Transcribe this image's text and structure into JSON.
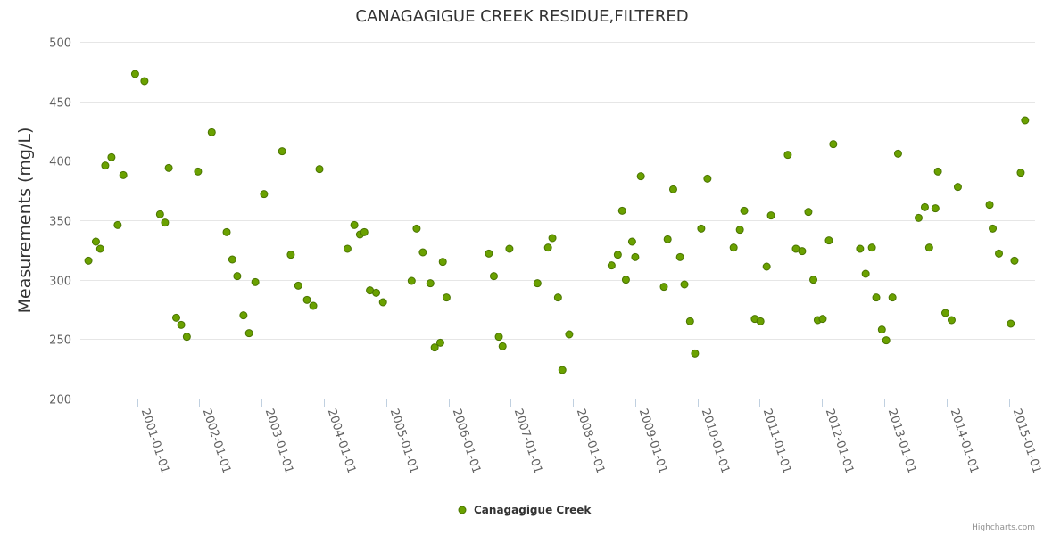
{
  "chart_data": {
    "type": "scatter",
    "title": "CANAGAGIGUE CREEK RESIDUE,FILTERED",
    "xlabel": "",
    "ylabel": "Measurements (mg/L)",
    "xlim": [
      2000.09,
      2015.42
    ],
    "ylim": [
      200,
      500
    ],
    "yticks": [
      200,
      250,
      300,
      350,
      400,
      450,
      500
    ],
    "xticks": [
      {
        "value": 2001,
        "label": "2001-01-01"
      },
      {
        "value": 2002,
        "label": "2002-01-01"
      },
      {
        "value": 2003,
        "label": "2003-01-01"
      },
      {
        "value": 2004,
        "label": "2004-01-01"
      },
      {
        "value": 2005,
        "label": "2005-01-01"
      },
      {
        "value": 2006,
        "label": "2006-01-01"
      },
      {
        "value": 2007,
        "label": "2007-01-01"
      },
      {
        "value": 2008,
        "label": "2008-01-01"
      },
      {
        "value": 2009,
        "label": "2009-01-01"
      },
      {
        "value": 2010,
        "label": "2010-01-01"
      },
      {
        "value": 2011,
        "label": "2011-01-01"
      },
      {
        "value": 2012,
        "label": "2012-01-01"
      },
      {
        "value": 2013,
        "label": "2013-01-01"
      },
      {
        "value": 2014,
        "label": "2014-01-01"
      },
      {
        "value": 2015,
        "label": "2015-01-01"
      }
    ],
    "grid": true,
    "legend_position": "bottom-center",
    "series": [
      {
        "name": "Canagagigue Creek",
        "color": "#6aa100",
        "border_color": "#4a7500",
        "x": [
          2000.22,
          2000.34,
          2000.41,
          2000.49,
          2000.59,
          2000.69,
          2000.78,
          2000.97,
          2001.12,
          2001.37,
          2001.45,
          2001.51,
          2001.63,
          2001.71,
          2001.8,
          2001.98,
          2002.2,
          2002.44,
          2002.53,
          2002.61,
          2002.71,
          2002.8,
          2002.9,
          2003.04,
          2003.33,
          2003.47,
          2003.59,
          2003.73,
          2003.83,
          2003.93,
          2004.38,
          2004.49,
          2004.58,
          2004.65,
          2004.74,
          2004.84,
          2004.95,
          2005.41,
          2005.49,
          2005.59,
          2005.71,
          2005.78,
          2005.87,
          2005.91,
          2005.97,
          2006.65,
          2006.73,
          2006.81,
          2006.87,
          2006.98,
          2007.43,
          2007.6,
          2007.67,
          2007.76,
          2007.83,
          2007.94,
          2008.62,
          2008.72,
          2008.79,
          2008.85,
          2008.95,
          2009.0,
          2009.09,
          2009.46,
          2009.52,
          2009.61,
          2009.72,
          2009.79,
          2009.88,
          2009.96,
          2010.06,
          2010.16,
          2010.58,
          2010.68,
          2010.75,
          2010.92,
          2011.01,
          2011.11,
          2011.18,
          2011.45,
          2011.58,
          2011.68,
          2011.78,
          2011.86,
          2011.93,
          2012.01,
          2012.11,
          2012.18,
          2012.61,
          2012.7,
          2012.8,
          2012.87,
          2012.96,
          2013.03,
          2013.13,
          2013.22,
          2013.55,
          2013.65,
          2013.72,
          2013.82,
          2013.86,
          2013.98,
          2014.08,
          2014.18,
          2014.69,
          2014.74,
          2014.84,
          2015.03,
          2015.09,
          2015.19,
          2015.26
        ],
        "y": [
          316,
          332,
          326,
          396,
          403,
          346,
          388,
          473,
          467,
          355,
          348,
          394,
          268,
          262,
          252,
          391,
          424,
          340,
          317,
          303,
          270,
          255,
          298,
          372,
          408,
          321,
          295,
          283,
          278,
          393,
          326,
          346,
          338,
          340,
          291,
          289,
          281,
          299,
          343,
          323,
          297,
          243,
          247,
          315,
          285,
          322,
          303,
          252,
          244,
          326,
          297,
          327,
          335,
          285,
          224,
          254,
          312,
          321,
          358,
          300,
          332,
          319,
          387,
          294,
          334,
          376,
          319,
          296,
          265,
          238,
          343,
          385,
          327,
          342,
          358,
          267,
          265,
          311,
          354,
          405,
          326,
          324,
          357,
          300,
          266,
          267,
          333,
          414,
          326,
          305,
          327,
          285,
          258,
          249,
          285,
          406,
          352,
          361,
          327,
          360,
          391,
          272,
          266,
          378,
          363,
          343,
          322,
          263,
          316,
          390,
          434
        ]
      }
    ]
  },
  "credits": "Highcharts.com"
}
